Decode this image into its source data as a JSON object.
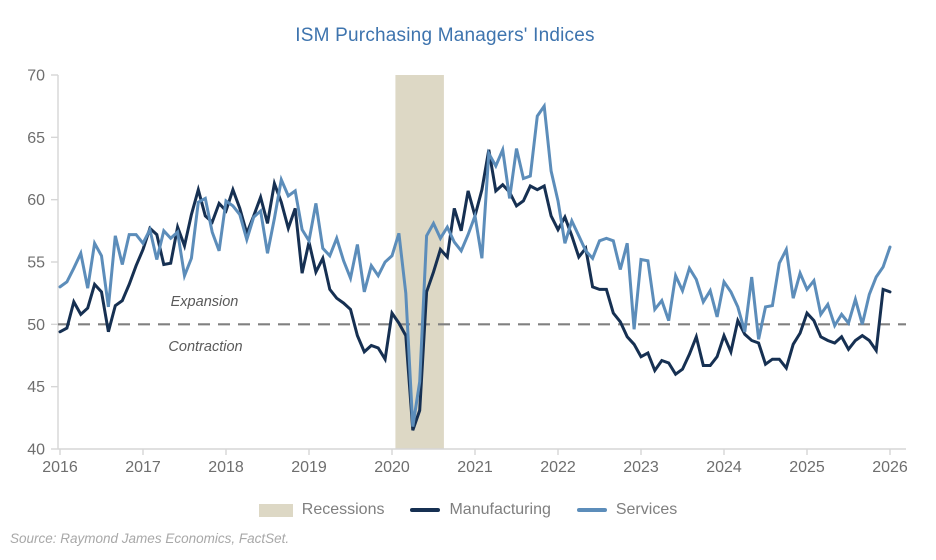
{
  "title": {
    "text": "ISM Purchasing Managers' Indices",
    "color": "#3e74ae"
  },
  "annotations": {
    "expansion_label": "Expansion",
    "contraction_label": "Contraction"
  },
  "legend": [
    {
      "label": "Recessions",
      "type": "band",
      "color": "#ddd8c5"
    },
    {
      "label": "Manufacturing",
      "type": "line",
      "color": "#163052"
    },
    {
      "label": "Services",
      "type": "line",
      "color": "#5c8dba"
    }
  ],
  "source": "Source: Raymond James Economics, FactSet.",
  "colors": {
    "axis_line": "#d6d6d6",
    "tick_label": "#6e6e6e",
    "reference_line": "#808080",
    "annotation_text": "#5a5a5a"
  },
  "chart_data": {
    "type": "line",
    "title": "ISM Purchasing Managers' Indices",
    "x_start": "2016-01",
    "x_frequency": "monthly",
    "x_tick_labels": [
      "2016",
      "2017",
      "2018",
      "2019",
      "2020",
      "2021",
      "2022",
      "2023",
      "2024",
      "2025",
      "2026"
    ],
    "y_ticks": [
      40,
      45,
      50,
      55,
      60,
      65,
      70
    ],
    "ylim": [
      40,
      70
    ],
    "grid": false,
    "legend_position": "bottom",
    "reference_line": {
      "value": 50,
      "style": "dashed",
      "color": "#808080",
      "label_above": "Expansion",
      "label_below": "Contraction"
    },
    "recession_bands": [
      {
        "start": "2020-02",
        "end": "2020-08",
        "color": "#ddd8c5"
      }
    ],
    "series": [
      {
        "name": "Manufacturing",
        "color": "#163052",
        "values": [
          49.4,
          49.7,
          51.8,
          50.8,
          51.3,
          53.2,
          52.6,
          49.4,
          51.5,
          51.9,
          53.2,
          54.7,
          56.0,
          57.7,
          57.2,
          54.8,
          54.9,
          57.8,
          56.3,
          58.8,
          60.8,
          58.7,
          58.2,
          59.7,
          59.1,
          60.8,
          59.3,
          57.3,
          58.7,
          60.2,
          58.1,
          61.3,
          59.8,
          57.7,
          59.3,
          54.1,
          56.6,
          54.2,
          55.3,
          52.8,
          52.1,
          51.7,
          51.2,
          49.1,
          47.8,
          48.3,
          48.1,
          47.2,
          50.9,
          50.1,
          49.1,
          41.5,
          43.1,
          52.6,
          54.2,
          56.0,
          55.4,
          59.3,
          57.5,
          60.7,
          58.7,
          60.8,
          64.0,
          60.7,
          61.2,
          60.6,
          59.5,
          59.9,
          61.1,
          60.8,
          61.1,
          58.7,
          57.6,
          58.6,
          57.1,
          55.4,
          56.1,
          53.0,
          52.8,
          52.8,
          50.9,
          50.2,
          49.0,
          48.4,
          47.4,
          47.7,
          46.3,
          47.1,
          46.9,
          46.0,
          46.4,
          47.6,
          49.0,
          46.7,
          46.7,
          47.4,
          49.1,
          47.8,
          50.3,
          49.2,
          48.7,
          48.5,
          46.8,
          47.2,
          47.2,
          46.5,
          48.4,
          49.3,
          50.9,
          50.3,
          49.0,
          48.7,
          48.5,
          49.0,
          48.0,
          48.7,
          49.1,
          48.7,
          47.9,
          52.8,
          52.6
        ]
      },
      {
        "name": "Services",
        "color": "#5c8dba",
        "values": [
          53.0,
          53.4,
          54.5,
          55.7,
          52.9,
          56.5,
          55.5,
          51.4,
          57.1,
          54.8,
          57.2,
          57.2,
          56.5,
          57.6,
          55.2,
          57.5,
          56.9,
          57.4,
          53.9,
          55.3,
          59.8,
          60.1,
          57.4,
          55.9,
          59.9,
          59.5,
          58.8,
          56.8,
          58.6,
          59.1,
          55.7,
          58.5,
          61.6,
          60.3,
          60.7,
          57.6,
          56.7,
          59.7,
          56.1,
          55.5,
          56.9,
          55.1,
          53.7,
          56.4,
          52.6,
          54.7,
          53.9,
          55.0,
          55.5,
          57.3,
          52.5,
          41.8,
          45.4,
          57.1,
          58.1,
          56.9,
          57.8,
          56.6,
          55.9,
          57.2,
          58.7,
          55.3,
          63.7,
          62.7,
          64.0,
          60.1,
          64.1,
          61.7,
          61.9,
          66.7,
          67.5,
          62.3,
          59.9,
          56.5,
          58.3,
          57.1,
          55.9,
          55.3,
          56.7,
          56.9,
          56.7,
          54.4,
          56.5,
          49.6,
          55.2,
          55.1,
          51.2,
          51.9,
          50.3,
          53.9,
          52.7,
          54.5,
          53.6,
          51.8,
          52.7,
          50.6,
          53.4,
          52.6,
          51.4,
          49.4,
          53.8,
          48.8,
          51.4,
          51.5,
          54.9,
          56.0,
          52.1,
          54.1,
          52.8,
          53.5,
          50.8,
          51.6,
          49.9,
          50.8,
          50.1,
          52.0,
          50.0,
          52.4,
          53.8,
          54.6,
          56.2
        ]
      }
    ]
  }
}
